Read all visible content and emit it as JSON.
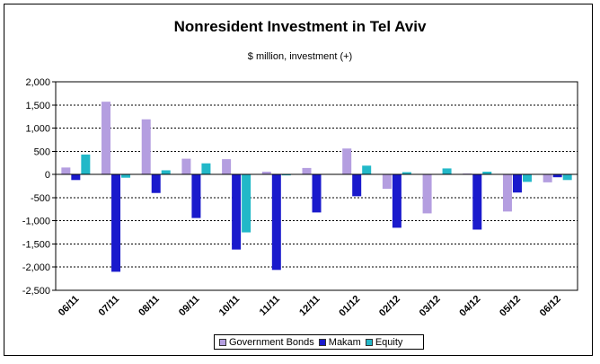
{
  "chart_data": {
    "type": "bar",
    "title": "Nonresident Investment in Tel Aviv",
    "subtitle": "$ million, investment (+)",
    "xlabel": "",
    "ylabel": "",
    "ylim": [
      -2500,
      2000
    ],
    "yticks": [
      2000,
      1500,
      1000,
      500,
      0,
      -500,
      -1000,
      -1500,
      -2000,
      -2500
    ],
    "ytick_labels": [
      "2,000",
      "1,500",
      "1,000",
      "500",
      "0",
      "-500",
      "-1,000",
      "-1,500",
      "-2,000",
      "-2,500"
    ],
    "categories": [
      "06/11",
      "07/11",
      "08/11",
      "09/11",
      "10/11",
      "11/11",
      "12/11",
      "01/12",
      "02/12",
      "03/12",
      "04/12",
      "05/12",
      "06/12"
    ],
    "grid": true,
    "legend_position": "bottom",
    "series": [
      {
        "name": "Government Bonds",
        "color": "#b49ee0",
        "values": [
          150,
          1570,
          1190,
          340,
          330,
          60,
          140,
          560,
          -310,
          -840,
          20,
          -800,
          -170
        ]
      },
      {
        "name": "Makam",
        "color": "#1a1acc",
        "values": [
          -120,
          -2100,
          -400,
          -940,
          -1620,
          -2060,
          -820,
          -470,
          -1150,
          0,
          -1190,
          -390,
          -60
        ]
      },
      {
        "name": "Equity",
        "color": "#22b8c8",
        "values": [
          430,
          -70,
          90,
          240,
          -1250,
          -20,
          0,
          190,
          50,
          130,
          60,
          -160,
          -120
        ]
      }
    ]
  }
}
